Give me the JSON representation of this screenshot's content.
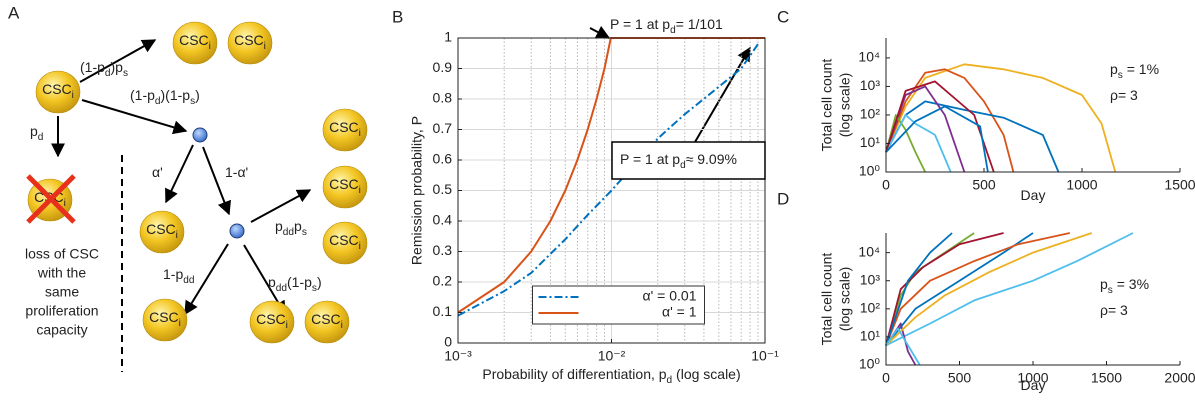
{
  "diagram": {
    "panel_label": "A",
    "nodes": [
      {
        "label": [
          "CSC",
          "i"
        ]
      },
      {
        "label": [
          "CSC",
          "i"
        ]
      },
      {
        "label": [
          "CSC",
          "i"
        ]
      },
      {
        "label": [
          "CSC",
          "i"
        ]
      },
      {
        "label": [
          "CSC",
          "i"
        ]
      },
      {
        "label": [
          "CSC",
          "i"
        ]
      },
      {
        "label": [
          "CSC",
          "i"
        ]
      },
      {
        "label": [
          "CSC",
          "i"
        ]
      },
      {
        "label": [
          "CSC",
          "i"
        ]
      },
      {
        "label": [
          "CSC",
          "i"
        ]
      },
      {
        "label": [
          "CSC",
          "i"
        ]
      }
    ],
    "edge_labels": [
      [
        "(1-p",
        "d",
        ")p",
        "s"
      ],
      [
        "(1-p",
        "d",
        ")(1-p",
        "s",
        ")"
      ],
      [
        "p",
        "d"
      ],
      [
        "α'"
      ],
      [
        "1-α'"
      ],
      [
        "p",
        "dd",
        "p",
        "s"
      ],
      [
        "1-p",
        "dd"
      ],
      [
        "p",
        "dd",
        "(1-p",
        "s",
        ")"
      ]
    ],
    "caption_lines": [
      "loss of CSC",
      "with the",
      "same",
      "proliferation",
      "capacity"
    ]
  },
  "chart_data": [
    {
      "type": "line",
      "panel_label": "B",
      "xlog": true,
      "grid": true,
      "box": true,
      "xlabel": [
        "Probability of differentiation, p",
        "d",
        " (log scale)"
      ],
      "ylabel": "Remission probability, P",
      "xlim": [
        0.001,
        0.1
      ],
      "ylim": [
        0,
        1
      ],
      "xticks": [
        {
          "value": 0.001,
          "label": "10⁻³"
        },
        {
          "value": 0.01,
          "label": "10⁻²"
        },
        {
          "value": 0.1,
          "label": "10⁻¹"
        }
      ],
      "xminorticks": [
        0.002,
        0.003,
        0.004,
        0.005,
        0.006,
        0.007,
        0.008,
        0.009,
        0.02,
        0.03,
        0.04,
        0.05,
        0.06,
        0.07,
        0.08,
        0.09
      ],
      "yticks": [
        0,
        0.1,
        0.2,
        0.3,
        0.4,
        0.5,
        0.6,
        0.7,
        0.8,
        0.9,
        1
      ],
      "legend": "south",
      "annotations": [
        {
          "text": [
            "P = 1 at p",
            "d",
            "= 1/101"
          ]
        },
        {
          "text": [
            "P = 1 at p",
            "d",
            "≈ 9.09%"
          ],
          "boxed": true
        }
      ],
      "series": [
        {
          "name": "α' = 0.01",
          "color": "#0072BD",
          "line_style": "dashdot",
          "x": [
            0.001,
            0.002,
            0.003,
            0.005,
            0.007,
            0.01,
            0.02,
            0.03,
            0.05,
            0.07,
            0.09
          ],
          "values": [
            0.09,
            0.17,
            0.23,
            0.34,
            0.42,
            0.5,
            0.67,
            0.75,
            0.84,
            0.9,
            0.98
          ]
        },
        {
          "name": "α' = 1",
          "color": "#D95319",
          "line_style": "solid",
          "x": [
            0.001,
            0.002,
            0.003,
            0.004,
            0.005,
            0.006,
            0.007,
            0.008,
            0.009,
            0.0099,
            0.1
          ],
          "values": [
            0.1,
            0.2,
            0.3,
            0.4,
            0.5,
            0.6,
            0.7,
            0.8,
            0.9,
            1,
            1
          ]
        }
      ]
    },
    {
      "type": "line",
      "panel_label": "C",
      "ylog": true,
      "box": false,
      "xlabel": [
        "Day"
      ],
      "ylabel_lines": [
        "Total cell count",
        "(log scale)"
      ],
      "xlim": [
        0,
        1500
      ],
      "ylim": [
        1,
        50000
      ],
      "xticks": [
        0,
        500,
        1000,
        1500
      ],
      "yticks": [
        {
          "value": 1,
          "label": "10⁰"
        },
        {
          "value": 10,
          "label": "10¹"
        },
        {
          "value": 100,
          "label": "10²"
        },
        {
          "value": 1000,
          "label": "10³"
        },
        {
          "value": 10000,
          "label": "10⁴"
        }
      ],
      "annotations": [
        {
          "text": [
            "p",
            "s",
            " = 1%"
          ]
        },
        {
          "text": [
            "ρ= 3"
          ]
        }
      ],
      "series": [
        {
          "color": "#EDB120",
          "x": [
            0,
            100,
            200,
            400,
            600,
            800,
            1000,
            1100,
            1150,
            1170
          ],
          "values": [
            5,
            200,
            2000,
            6000,
            4000,
            2000,
            500,
            50,
            3,
            1
          ]
        },
        {
          "color": "#D95319",
          "x": [
            0,
            100,
            200,
            300,
            400,
            500,
            600,
            650
          ],
          "values": [
            5,
            300,
            3000,
            4000,
            2000,
            300,
            20,
            1
          ]
        },
        {
          "color": "#0072BD",
          "x": [
            0,
            100,
            200,
            400,
            600,
            800,
            880
          ],
          "values": [
            5,
            100,
            300,
            150,
            80,
            20,
            1
          ]
        },
        {
          "color": "#7E2F8E",
          "x": [
            0,
            100,
            200,
            300,
            400
          ],
          "values": [
            5,
            500,
            1000,
            100,
            1
          ]
        },
        {
          "color": "#77AC30",
          "x": [
            0,
            50,
            100,
            150,
            200
          ],
          "values": [
            5,
            100,
            30,
            5,
            1
          ]
        },
        {
          "color": "#4DBEEE",
          "x": [
            0,
            100,
            150,
            250,
            330
          ],
          "values": [
            5,
            100,
            50,
            20,
            1
          ]
        },
        {
          "color": "#A2142F",
          "x": [
            0,
            100,
            250,
            450,
            550
          ],
          "values": [
            5,
            700,
            1500,
            100,
            1
          ]
        },
        {
          "color": "#0072BD",
          "x": [
            0,
            150,
            300,
            480,
            520
          ],
          "values": [
            5,
            60,
            200,
            40,
            1
          ]
        }
      ]
    },
    {
      "type": "line",
      "panel_label": "D",
      "ylog": true,
      "box": false,
      "xlabel": [
        "Day"
      ],
      "ylabel_lines": [
        "Total cell count",
        "(log scale)"
      ],
      "xlim": [
        0,
        2000
      ],
      "ylim": [
        1,
        50000
      ],
      "xticks": [
        0,
        500,
        1000,
        1500,
        2000
      ],
      "yticks": [
        {
          "value": 1,
          "label": "10⁰"
        },
        {
          "value": 10,
          "label": "10¹"
        },
        {
          "value": 100,
          "label": "10²"
        },
        {
          "value": 1000,
          "label": "10³"
        },
        {
          "value": 10000,
          "label": "10⁴"
        }
      ],
      "annotations": [
        {
          "text": [
            "p",
            "s",
            " = 3%"
          ]
        },
        {
          "text": [
            "ρ= 3"
          ]
        }
      ],
      "series": [
        {
          "color": "#0072BD",
          "x": [
            0,
            200,
            500,
            800,
            1000
          ],
          "values": [
            5,
            100,
            1000,
            10000,
            50000
          ]
        },
        {
          "color": "#4DBEEE",
          "x": [
            0,
            300,
            600,
            1000,
            1300,
            1680
          ],
          "values": [
            5,
            30,
            200,
            1000,
            5000,
            50000
          ]
        },
        {
          "color": "#D95319",
          "x": [
            0,
            100,
            300,
            600,
            900,
            1250
          ],
          "values": [
            5,
            100,
            1000,
            5000,
            20000,
            50000
          ]
        },
        {
          "color": "#7E2F8E",
          "x": [
            0,
            100,
            150,
            200
          ],
          "values": [
            5,
            30,
            3,
            1
          ]
        },
        {
          "color": "#77AC30",
          "x": [
            0,
            100,
            200,
            400,
            600
          ],
          "values": [
            5,
            300,
            2000,
            10000,
            50000
          ]
        },
        {
          "color": "#EDB120",
          "x": [
            0,
            200,
            400,
            700,
            1000,
            1400
          ],
          "values": [
            5,
            50,
            300,
            2000,
            10000,
            50000
          ]
        },
        {
          "color": "#A2142F",
          "x": [
            0,
            100,
            250,
            500,
            800
          ],
          "values": [
            5,
            500,
            3000,
            20000,
            50000
          ]
        },
        {
          "color": "#0072BD",
          "x": [
            0,
            150,
            300,
            450
          ],
          "values": [
            5,
            1000,
            10000,
            50000
          ]
        },
        {
          "color": "#4DBEEE",
          "x": [
            0,
            80,
            150,
            230
          ],
          "values": [
            5,
            20,
            5,
            1
          ]
        }
      ]
    }
  ]
}
